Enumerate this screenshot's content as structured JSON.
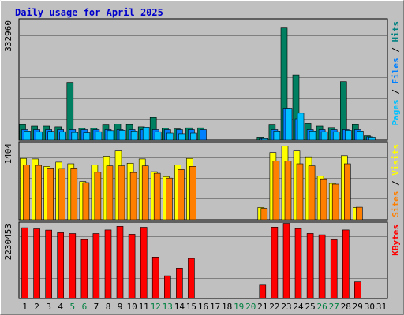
{
  "chart_data": {
    "type": "bar",
    "title": "Daily usage for April 2025",
    "categories": [
      "1",
      "2",
      "3",
      "4",
      "5",
      "6",
      "7",
      "8",
      "9",
      "10",
      "11",
      "12",
      "13",
      "14",
      "15",
      "16",
      "17",
      "18",
      "19",
      "20",
      "21",
      "22",
      "23",
      "24",
      "25",
      "26",
      "27",
      "28",
      "29",
      "30",
      "31"
    ],
    "weekend_days": [
      "5",
      "6",
      "12",
      "13",
      "19",
      "20",
      "26",
      "27"
    ],
    "grid": true,
    "legend_placement": "right-vertical",
    "panels": [
      {
        "name": "hits-files-pages",
        "ymax_label": "332960",
        "ylim": [
          0,
          332960
        ],
        "legend": [
          {
            "text": "Pages",
            "color": "#00c0ff"
          },
          {
            "text": " / ",
            "color": "#000000"
          },
          {
            "text": "Files",
            "color": "#0080ff"
          },
          {
            "text": " / ",
            "color": "#000000"
          },
          {
            "text": "Hits",
            "color": "#008080"
          }
        ],
        "series": [
          {
            "name": "Hits",
            "color": "#008060",
            "values": [
              44000,
              40000,
              40000,
              38000,
              163000,
              34000,
              34000,
              43000,
              45000,
              44000,
              38000,
              64000,
              34000,
              32000,
              35000,
              35000,
              null,
              null,
              null,
              null,
              8000,
              43000,
              318000,
              184000,
              48000,
              40000,
              36000,
              165000,
              44000,
              12000,
              null
            ]
          },
          {
            "name": "Files",
            "color": "#0080ff",
            "values": [
              30000,
              30000,
              30000,
              30000,
              30000,
              30000,
              30000,
              30000,
              30000,
              30000,
              30000,
              30000,
              30000,
              30000,
              30000,
              30000,
              null,
              null,
              null,
              null,
              6000,
              30000,
              90000,
              60000,
              30000,
              30000,
              30000,
              30000,
              30000,
              9000,
              null
            ]
          },
          {
            "name": "Pages",
            "color": "#00c0ff",
            "values": [
              26000,
              24000,
              25000,
              24000,
              22000,
              21000,
              24000,
              27000,
              28000,
              26000,
              37000,
              24000,
              20000,
              18000,
              20000,
              null,
              null,
              null,
              null,
              null,
              6000,
              26000,
              90000,
              76000,
              26000,
              24000,
              24000,
              28000,
              26000,
              8000,
              null
            ]
          }
        ]
      },
      {
        "name": "visits-sites",
        "ymax_label": "1404",
        "ylim": [
          0,
          1404
        ],
        "legend": [
          {
            "text": "Sites",
            "color": "#ff8000"
          },
          {
            "text": " / ",
            "color": "#000000"
          },
          {
            "text": "Visits",
            "color": "#ffff00"
          }
        ],
        "series": [
          {
            "name": "Visits",
            "color": "#ffff00",
            "values": [
              1150,
              1140,
              1000,
              1080,
              1050,
              715,
              1030,
              1190,
              1290,
              1060,
              1140,
              900,
              810,
              1030,
              1150,
              null,
              null,
              null,
              null,
              null,
              230,
              1260,
              1380,
              1290,
              1180,
              820,
              680,
              1200,
              230,
              null,
              null
            ]
          },
          {
            "name": "Sites",
            "color": "#ff8000",
            "values": [
              1030,
              1020,
              970,
              960,
              970,
              695,
              890,
              1010,
              1010,
              885,
              1010,
              870,
              780,
              940,
              1000,
              null,
              null,
              null,
              null,
              null,
              215,
              1100,
              1100,
              1050,
              1010,
              765,
              665,
              1050,
              235,
              null,
              null
            ]
          }
        ]
      },
      {
        "name": "kbytes",
        "ymax_label": "2230453",
        "ylim": [
          0,
          2230453
        ],
        "legend": [
          {
            "text": "KBytes",
            "color": "#ff0000"
          }
        ],
        "series": [
          {
            "name": "KBytes",
            "color": "#ff0000",
            "values": [
              2155000,
              2122000,
              2085000,
              2005000,
              1978000,
              1795000,
              1978000,
              2090000,
              2200000,
              1956000,
              2170000,
              1265000,
              693000,
              927000,
              1220000,
              null,
              null,
              null,
              null,
              null,
              412000,
              2176000,
              2290000,
              2130000,
              1980000,
              1940000,
              1790000,
              2090000,
              510000,
              null,
              null
            ]
          }
        ]
      }
    ]
  }
}
